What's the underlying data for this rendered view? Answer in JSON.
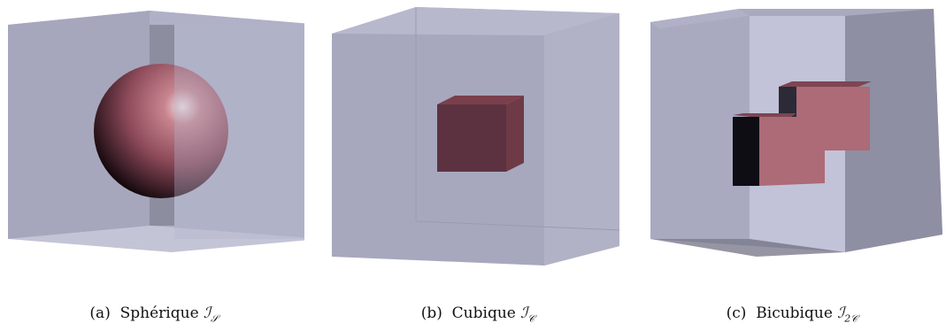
{
  "figures": [
    {
      "label": "(a)",
      "title": "Sphérique",
      "symbol": "ℐ",
      "subscript": "𝒮"
    },
    {
      "label": "(b)",
      "title": "Cubique",
      "symbol": "ℐ",
      "subscript": "𝒞"
    },
    {
      "label": "(c)",
      "title": "Bicubique",
      "symbol": "ℐ",
      "subscript": "2𝒞"
    }
  ],
  "colors": {
    "box_face": "#a9a9c0",
    "box_edge": "#7f7f8f",
    "inclusion": "#b06a78",
    "inclusion_dark": "#5a2f3a",
    "shadow": "#222230"
  }
}
